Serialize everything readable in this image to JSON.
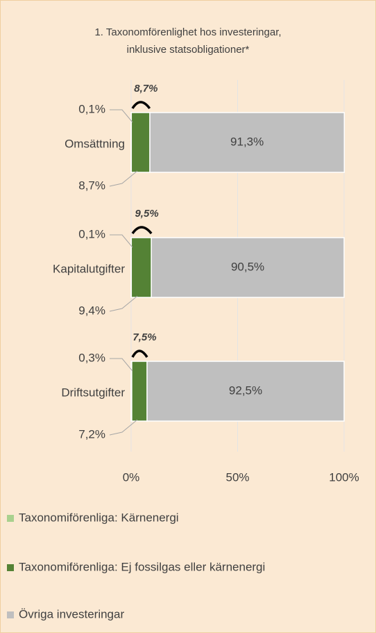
{
  "chart_data": {
    "type": "stacked-barh",
    "title": [
      "1. Taxonomförenlighet hos investeringar,",
      "inklusive statsobligationer*"
    ],
    "categories": [
      "Omsättning",
      "Kapitalutgifter",
      "Driftsutgifter"
    ],
    "series": [
      {
        "name": "Taxonomiförenliga: Kärnenergi",
        "color": "#a9d18e",
        "values": [
          0.1,
          0.1,
          0.3
        ],
        "value_labels": [
          "0,1%",
          "0,1%",
          "0,3%"
        ]
      },
      {
        "name": "Taxonomiförenliga: Ej fossilgas eller kärnenergi",
        "color": "#548235",
        "values": [
          8.7,
          9.4,
          7.2
        ],
        "value_labels": [
          "8,7%",
          "9,4%",
          "7,2%"
        ]
      },
      {
        "name": "Övriga investeringar",
        "color": "#bfbfbf",
        "values": [
          91.3,
          90.5,
          92.5
        ],
        "value_labels": [
          "91,3%",
          "90,5%",
          "92,5%"
        ]
      }
    ],
    "annotations": [
      {
        "value": 8.7,
        "label": "8,7%"
      },
      {
        "value": 9.5,
        "label": "9,5%"
      },
      {
        "value": 7.5,
        "label": "7,5%"
      }
    ],
    "xlim": [
      0,
      100
    ],
    "xticks": [
      {
        "value": 0,
        "label": "0%"
      },
      {
        "value": 50,
        "label": "50%"
      },
      {
        "value": 100,
        "label": "100%"
      }
    ],
    "grid": true,
    "legend": "bottom"
  }
}
